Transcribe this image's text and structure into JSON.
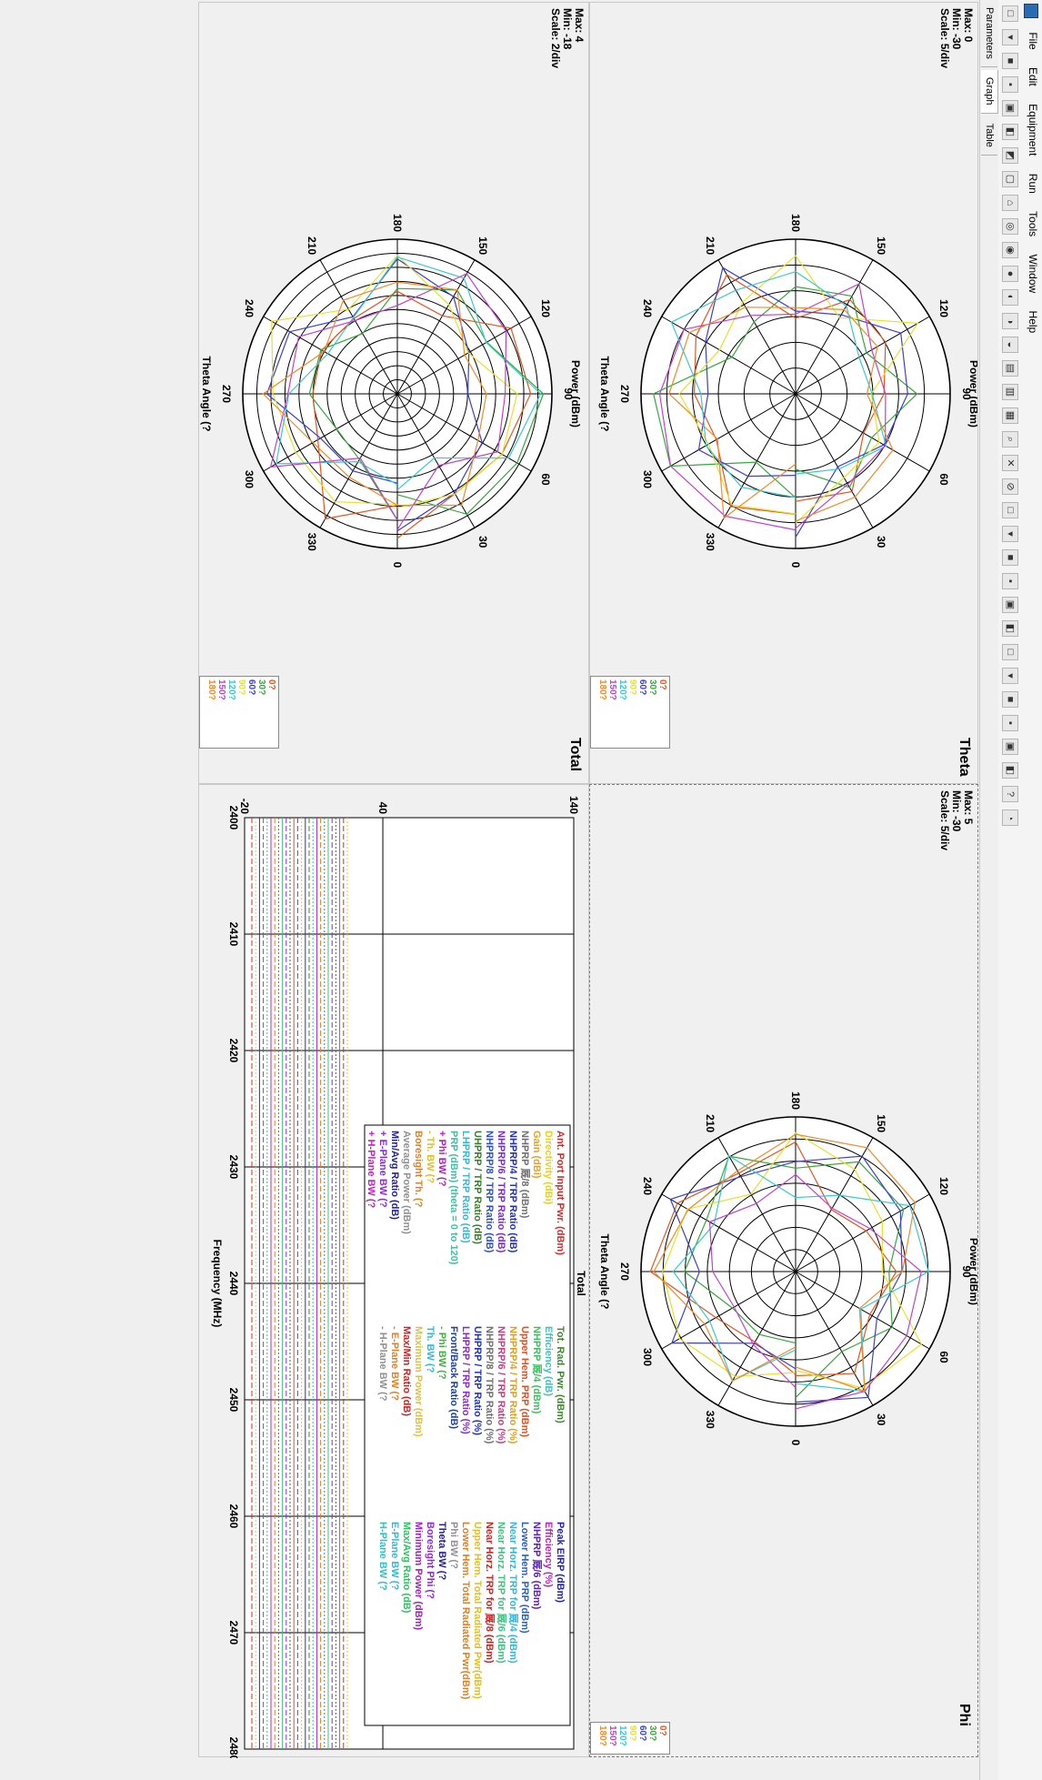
{
  "menu": [
    "File",
    "Edit",
    "Equipment",
    "Run",
    "Tools",
    "Window",
    "Help"
  ],
  "tabs": [
    "Parameters",
    "Graph",
    "Table"
  ],
  "panes": [
    {
      "title": "Theta",
      "chart_title": "Power  (dBm)",
      "axis_label": "Theta Angle (?",
      "stats": [
        "Max: 0",
        "Min: -30",
        "Scale: 5/div"
      ],
      "legend": [
        "0?",
        "30?",
        "60?",
        "90?",
        "120?",
        "150?",
        "180?"
      ]
    },
    {
      "title": "Total",
      "chart_title": "Power  (dBm)",
      "axis_label": "Theta Angle (?",
      "stats": [
        "Max: 4",
        "Min: -18",
        "Scale: 2/div"
      ],
      "legend": [
        "0?",
        "30?",
        "60?",
        "90?",
        "120?",
        "150?",
        "180?"
      ]
    },
    {
      "title": "Phi",
      "chart_title": "Power  (dBm)",
      "axis_label": "Theta Angle (?",
      "stats": [
        "Max: 5",
        "Min: -30",
        "Scale: 5/div"
      ],
      "legend": [
        "0?",
        "30?",
        "60?",
        "90?",
        "120?",
        "150?",
        "180?"
      ]
    }
  ],
  "legend_colors": [
    "#e8541e",
    "#35a83a",
    "#3b3fd2",
    "#e6e12b",
    "#38c8d2",
    "#c43fd0",
    "#f08a2a"
  ],
  "polar_ticks": [
    "0",
    "30",
    "60",
    "90",
    "120",
    "150",
    "180",
    "210",
    "240",
    "270",
    "300",
    "330"
  ],
  "graph": {
    "title": "Total",
    "xlabel": "Frequency (MHz)",
    "y_ticks": [
      "140",
      "40",
      "-20"
    ],
    "x_ticks": [
      "2400",
      "2410",
      "2420",
      "2430",
      "2440",
      "2450",
      "2460",
      "2470",
      "2480"
    ],
    "legend_col1": [
      {
        "text": "Ant. Port Input Pwr. (dBm)",
        "color": "#d42a2a"
      },
      {
        "text": "Directivity (dBi)",
        "color": "#e6d020"
      },
      {
        "text": "Gain (dBi)",
        "color": "#e8a020"
      },
      {
        "text": "NHPRP 厩/8 (dBm)",
        "color": "#707070"
      },
      {
        "text": "NHPRP/4 / TRP Ratio (dB)",
        "color": "#2030c0"
      },
      {
        "text": "NHPRP/6 / TRP Ratio (dB)",
        "color": "#7a2ad0"
      },
      {
        "text": "NHPRP/8 / TRP Ratio (dB)",
        "color": "#2a50d0"
      },
      {
        "text": "UHPRP / TRP Ratio (dB)",
        "color": "#3a7a2a"
      },
      {
        "text": "LHPRP / TRP Ratio (dB)",
        "color": "#30b8d8"
      },
      {
        "text": "PRP (dBm) (theta = 0 to 120)",
        "color": "#40c0a0"
      },
      {
        "text": "+ Phi BW (?",
        "color": "#b020c0"
      },
      {
        "text": "- Th. BW (?",
        "color": "#e0c020"
      },
      {
        "text": "Boresight Th. (?",
        "color": "#e08020"
      },
      {
        "text": "Average Power (dBm)",
        "color": "#909090"
      },
      {
        "text": "Min/Avg Ratio (dB)",
        "color": "#2020a0"
      },
      {
        "text": "+ E-Plane BW (?",
        "color": "#8a2ad0"
      },
      {
        "text": "+ H-Plane BW (?",
        "color": "#c020c0"
      }
    ],
    "legend_col2": [
      {
        "text": "Tot. Rad. Pwr. (dBm)",
        "color": "#3a8a2a"
      },
      {
        "text": "Efficiency (dB)",
        "color": "#40c0c0"
      },
      {
        "text": "NHPRP 厩/4 (dBm)",
        "color": "#3ac060"
      },
      {
        "text": "Upper Hem. PRP (dBm)",
        "color": "#e05020"
      },
      {
        "text": "NHPRP/4 / TRP Ratio (%)",
        "color": "#e0a020"
      },
      {
        "text": "NHPRP/6 / TRP Ratio (%)",
        "color": "#c04080"
      },
      {
        "text": "NHPRP/8 / TRP Ratio (%)",
        "color": "#707070"
      },
      {
        "text": "UHPRP / TRP Ratio (%)",
        "color": "#2030c0"
      },
      {
        "text": "LHPRP / TRP Ratio (%)",
        "color": "#8a2ad0"
      },
      {
        "text": "Front/Back Ratio (dB)",
        "color": "#2040a0"
      },
      {
        "text": "- Phi BW (?",
        "color": "#40b040"
      },
      {
        "text": "Th. BW (?",
        "color": "#30b8d8"
      },
      {
        "text": "Maximum Power (dBm)",
        "color": "#e0c040"
      },
      {
        "text": "Max/Min Ratio (dB)",
        "color": "#d02020"
      },
      {
        "text": "- E-Plane BW (?",
        "color": "#e08020"
      },
      {
        "text": "- H-Plane BW (?",
        "color": "#909090"
      }
    ],
    "legend_col3": [
      {
        "text": "Peak EIRP (dBm)",
        "color": "#2020c0"
      },
      {
        "text": "Efficiency (%)",
        "color": "#c020c0"
      },
      {
        "text": "NHPRP 厩/6 (dBm)",
        "color": "#6020c0"
      },
      {
        "text": "Lower Hem. PRP (dBm)",
        "color": "#2a60c0"
      },
      {
        "text": "Near Horz. TRP for 厩/4 (dBm)",
        "color": "#30b8d8"
      },
      {
        "text": "Near Horz. TRP for 厩/6 (dBm)",
        "color": "#40c080"
      },
      {
        "text": "Near Horz. TRP for 厩/8 (dBm)",
        "color": "#d02020"
      },
      {
        "text": "Upper Hem. Total Radiated Pwr(dBm)",
        "color": "#e0c020"
      },
      {
        "text": "Lower Hem. Total Radiated Pwr(dBm)",
        "color": "#e08020"
      },
      {
        "text": "Phi BW (?",
        "color": "#909090"
      },
      {
        "text": "Theta BW (?",
        "color": "#2020a0"
      },
      {
        "text": "Boresight Phi (?",
        "color": "#8a2ad0"
      },
      {
        "text": "Minimum Power (dBm)",
        "color": "#a020c0"
      },
      {
        "text": "Max/Avg Ratio (dB)",
        "color": "#30c060"
      },
      {
        "text": "E-Plane BW (?",
        "color": "#30b8d8"
      },
      {
        "text": "H-Plane BW (?",
        "color": "#30c0c0"
      }
    ]
  }
}
